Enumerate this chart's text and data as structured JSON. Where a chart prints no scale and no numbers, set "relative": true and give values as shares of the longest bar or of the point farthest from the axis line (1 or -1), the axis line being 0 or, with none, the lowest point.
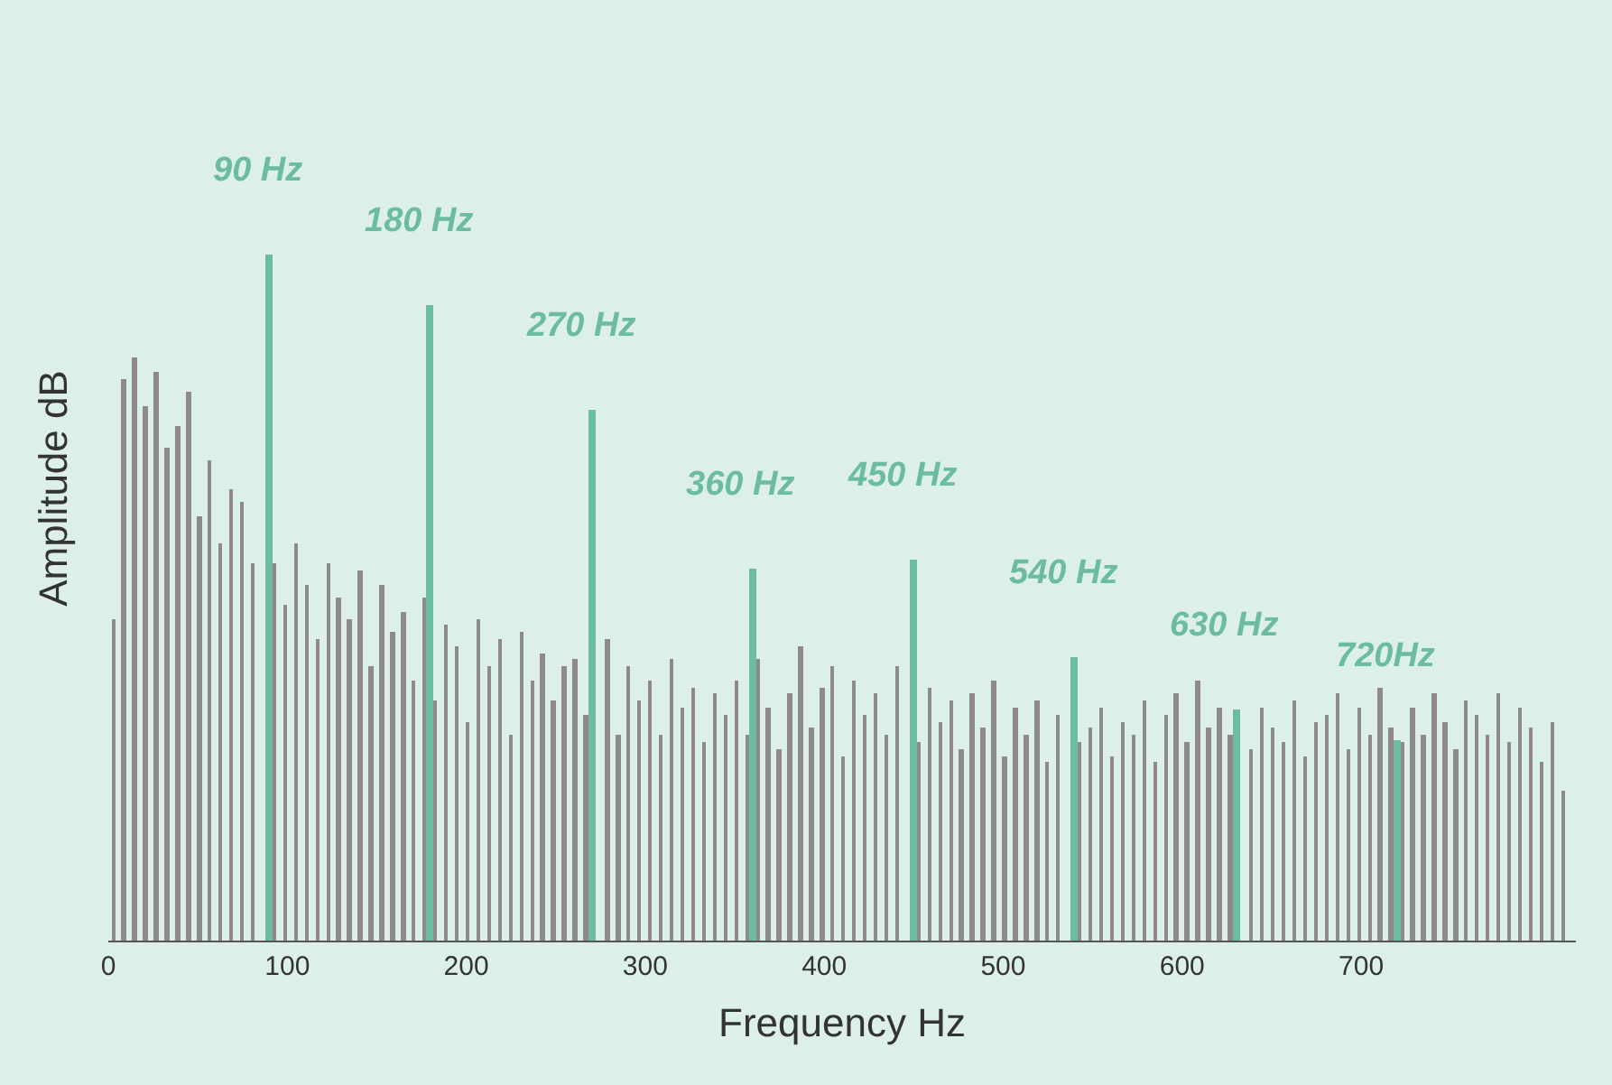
{
  "chart_data": {
    "type": "bar",
    "relative": true,
    "xlabel": "Frequency Hz",
    "ylabel": "Amplitude dB",
    "xlim": [
      0,
      820
    ],
    "xticks": [
      0,
      100,
      200,
      300,
      400,
      500,
      600,
      700
    ],
    "grid": false,
    "legend": false,
    "series": [
      {
        "color": "#8e8a8c",
        "x": [
          3,
          9,
          15,
          21,
          27,
          33,
          39,
          45,
          51,
          57,
          63,
          69,
          75,
          81,
          87,
          93,
          99,
          105,
          111,
          117,
          123,
          129,
          135,
          141,
          147,
          153,
          159,
          165,
          171,
          177,
          183,
          189,
          195,
          201,
          207,
          213,
          219,
          225,
          231,
          237,
          243,
          249,
          255,
          261,
          267,
          273,
          279,
          285,
          291,
          297,
          303,
          309,
          315,
          321,
          327,
          333,
          339,
          345,
          351,
          357,
          363,
          369,
          375,
          381,
          387,
          393,
          399,
          405,
          411,
          417,
          423,
          429,
          435,
          441,
          447,
          453,
          459,
          465,
          471,
          477,
          483,
          489,
          495,
          501,
          507,
          513,
          519,
          525,
          531,
          537,
          543,
          549,
          555,
          561,
          567,
          573,
          579,
          585,
          591,
          597,
          603,
          609,
          615,
          621,
          627,
          633,
          639,
          645,
          651,
          657,
          663,
          669,
          675,
          681,
          687,
          693,
          699,
          705,
          711,
          717,
          723,
          729,
          735,
          741,
          747,
          753,
          759,
          765,
          771,
          777,
          783,
          789,
          795,
          801,
          807,
          813
        ],
        "values": [
          0.47,
          0.82,
          0.85,
          0.78,
          0.83,
          0.72,
          0.75,
          0.8,
          0.62,
          0.7,
          0.58,
          0.66,
          0.64,
          0.55,
          null,
          0.55,
          0.49,
          0.58,
          0.52,
          0.44,
          0.55,
          0.5,
          0.47,
          0.54,
          0.4,
          0.52,
          0.45,
          0.48,
          0.38,
          0.5,
          0.35,
          0.46,
          0.43,
          0.32,
          0.47,
          0.4,
          0.44,
          0.3,
          0.45,
          0.38,
          0.42,
          0.35,
          0.4,
          0.41,
          0.33,
          null,
          0.44,
          0.3,
          0.4,
          0.35,
          0.38,
          0.3,
          0.41,
          0.34,
          0.37,
          0.29,
          0.36,
          0.33,
          0.38,
          0.3,
          0.41,
          0.34,
          0.28,
          0.36,
          0.43,
          0.31,
          0.37,
          0.4,
          0.27,
          0.38,
          0.33,
          0.36,
          0.3,
          0.4,
          null,
          0.29,
          0.37,
          0.32,
          0.35,
          0.28,
          0.36,
          0.31,
          0.38,
          0.27,
          0.34,
          0.3,
          0.35,
          0.26,
          0.33,
          null,
          0.29,
          0.31,
          0.34,
          0.27,
          0.32,
          0.3,
          0.35,
          0.26,
          0.33,
          0.36,
          0.29,
          0.38,
          0.31,
          0.34,
          0.3,
          null,
          0.28,
          0.34,
          0.31,
          0.29,
          0.35,
          0.27,
          0.32,
          0.33,
          0.36,
          0.28,
          0.34,
          0.3,
          0.37,
          0.31,
          0.29,
          0.34,
          0.3,
          0.36,
          0.32,
          0.28,
          0.35,
          0.33,
          0.3,
          0.36,
          0.29,
          0.34,
          0.31,
          0.26,
          0.32,
          0.22
        ]
      },
      {
        "color": "#6cbc9f",
        "x": [
          90,
          180,
          270,
          360,
          450,
          540,
          630,
          720
        ],
        "values": [
          1.0,
          0.927,
          0.775,
          0.543,
          0.556,
          0.414,
          0.336,
          0.293
        ]
      }
    ],
    "annotations": [
      {
        "text": "90 Hz",
        "x": 90,
        "y": 1.0
      },
      {
        "text": "180 Hz",
        "x": 180,
        "y": 0.927
      },
      {
        "text": "270 Hz",
        "x": 270,
        "y": 0.775
      },
      {
        "text": "360 Hz",
        "x": 360,
        "y": 0.543
      },
      {
        "text": "450 Hz",
        "x": 450,
        "y": 0.556
      },
      {
        "text": "540 Hz",
        "x": 540,
        "y": 0.414
      },
      {
        "text": "630 Hz",
        "x": 630,
        "y": 0.336
      },
      {
        "text": "720Hz",
        "x": 720,
        "y": 0.293
      }
    ]
  }
}
